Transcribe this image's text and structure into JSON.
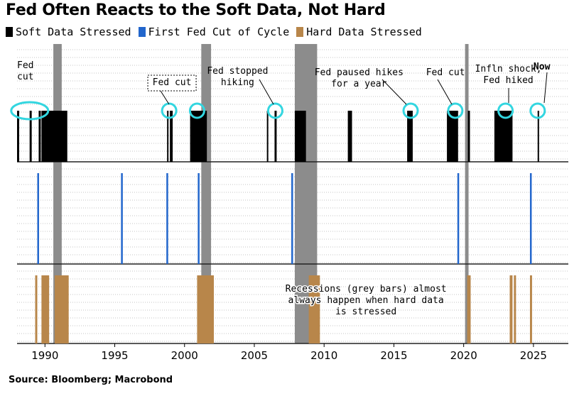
{
  "title": "Fed Often Reacts to the Soft Data, Not Hard",
  "source": "Source: Bloomberg; Macrobond",
  "colors": {
    "soft": "#000000",
    "fed_cut": "#2266cc",
    "hard": "#b8864a",
    "recession": "#8c8c8c",
    "circle": "#33d6e0"
  },
  "legend": [
    {
      "label": "Soft Data Stressed",
      "color": "#000000"
    },
    {
      "label": "First Fed Cut of Cycle",
      "color": "#2266cc"
    },
    {
      "label": "Hard Data Stressed",
      "color": "#b8864a"
    }
  ],
  "chart_data": {
    "type": "event-timeline",
    "x_range": [
      1988,
      2027.5
    ],
    "x_ticks": [
      1990,
      1995,
      2000,
      2005,
      2010,
      2015,
      2020,
      2025
    ],
    "grid": "dotted horizontal",
    "recessions": [
      [
        1990.6,
        1991.2
      ],
      [
        2001.2,
        2001.9
      ],
      [
        2007.9,
        2009.5
      ],
      [
        2020.1,
        2020.35
      ]
    ],
    "soft_data_stressed": [
      [
        1988.0,
        1988.15
      ],
      [
        1988.9,
        1989.05
      ],
      [
        1989.55,
        1989.7
      ],
      [
        1989.75,
        1991.6
      ],
      [
        1998.75,
        1998.85
      ],
      [
        1998.95,
        1999.15
      ],
      [
        2000.4,
        2001.6
      ],
      [
        2005.9,
        2006.0
      ],
      [
        2006.45,
        2006.6
      ],
      [
        2007.9,
        2008.7
      ],
      [
        2011.7,
        2012.0
      ],
      [
        2015.95,
        2016.35
      ],
      [
        2018.8,
        2019.6
      ],
      [
        2020.3,
        2020.45
      ],
      [
        2022.2,
        2023.5
      ],
      [
        2025.3,
        2025.38
      ]
    ],
    "first_fed_cut": [
      1989.5,
      1995.5,
      1998.75,
      2001.0,
      2007.7,
      2019.6,
      2024.8
    ],
    "hard_data_stressed": [
      [
        1989.3,
        1989.45
      ],
      [
        1989.75,
        1990.3
      ],
      [
        1990.7,
        1991.7
      ],
      [
        2000.9,
        2002.1
      ],
      [
        2008.9,
        2009.7
      ],
      [
        2020.25,
        2020.5
      ],
      [
        2023.3,
        2023.5
      ],
      [
        2023.6,
        2023.75
      ],
      [
        2024.75,
        2024.9
      ]
    ],
    "annotations": [
      {
        "text": [
          "Fed",
          "cut"
        ],
        "x": 1988.6
      },
      {
        "text": [
          "Fed cut"
        ],
        "x": 1999.1,
        "boxed": true
      },
      {
        "text": [
          "Fed stopped",
          "hiking"
        ],
        "x": 2003.8
      },
      {
        "text": [
          "Fed paused hikes",
          "for a year"
        ],
        "x": 2012.5
      },
      {
        "text": [
          "Fed cut"
        ],
        "x": 2018.7
      },
      {
        "text": [
          "Infln shock,",
          "Fed hiked"
        ],
        "x": 2023.2
      },
      {
        "text": [
          "Now"
        ],
        "x": 2025.6,
        "bold": true
      },
      {
        "text": [
          "Recessions (grey bars) almost",
          "always happen when hard data",
          "is stressed"
        ],
        "x": 2013.0
      }
    ],
    "highlight_circles": [
      1988.6,
      1998.9,
      2000.9,
      2006.5,
      2016.2,
      2019.4,
      2023.0,
      2025.3
    ]
  }
}
